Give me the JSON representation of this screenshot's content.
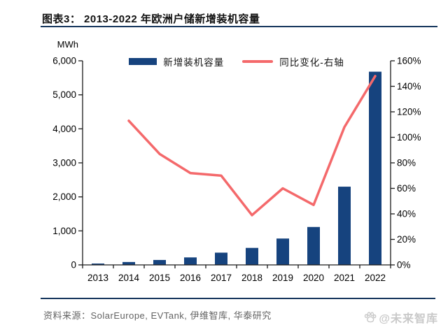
{
  "page": {
    "background": "#ffffff"
  },
  "header": {
    "title": "图表3：  2013-2022 年欧洲户储新增装机容量"
  },
  "chart_data": {
    "type": "bar",
    "subtype": "bar+line dual axis",
    "categories": [
      "2013",
      "2014",
      "2015",
      "2016",
      "2017",
      "2018",
      "2019",
      "2020",
      "2021",
      "2022"
    ],
    "series": [
      {
        "name": "新增装机容量",
        "type": "bar",
        "axis": "left",
        "color": "#16437E",
        "values": [
          40,
          85,
          145,
          220,
          360,
          500,
          775,
          1115,
          2300,
          5680
        ]
      },
      {
        "name": "同比变化-右轴",
        "type": "line",
        "axis": "right",
        "color": "#F4696B",
        "start_category": "2014",
        "values_pct": [
          113,
          87,
          72,
          70,
          39,
          60,
          47,
          108,
          148
        ]
      }
    ],
    "left_axis": {
      "label": "MWh",
      "min": 0,
      "max": 6000,
      "step": 1000,
      "tick_labels": [
        "0",
        "1,000",
        "2,000",
        "3,000",
        "4,000",
        "5,000",
        "6,000"
      ]
    },
    "right_axis": {
      "min": 0,
      "max": 160,
      "step": 20,
      "tick_labels": [
        "0%",
        "20%",
        "40%",
        "60%",
        "80%",
        "100%",
        "120%",
        "140%",
        "160%"
      ]
    },
    "grid": false,
    "legend_position": "top-center"
  },
  "footer": {
    "source_label": "资料来源：",
    "source_text": "SolarEurope, EVTank, 伊维智库, 华泰研究",
    "watermark": "@未来智库"
  }
}
